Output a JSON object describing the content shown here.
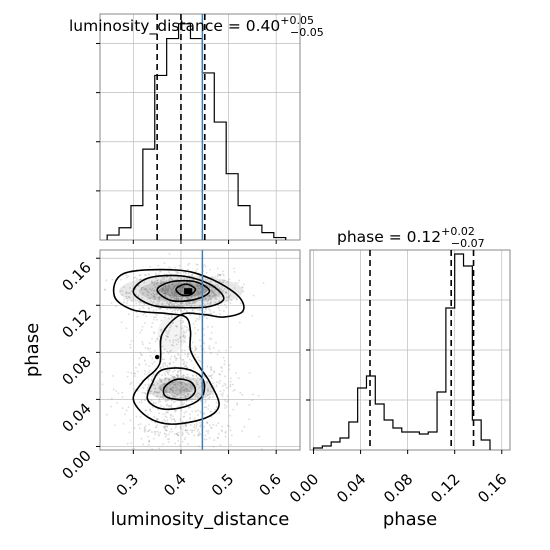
{
  "chart_data": {
    "type": "corner",
    "parameters": [
      "luminosity_distance",
      "phase"
    ],
    "truths": {
      "luminosity_distance": 0.445
    },
    "panels": [
      {
        "id": "hist-luminosity-distance",
        "type": "histogram",
        "title": {
          "prefix": "luminosity_distance = 0.40",
          "upper": "+0.05",
          "lower": "−0.05"
        },
        "xlim": [
          0.23,
          0.65
        ],
        "bin_edges": [
          0.245,
          0.27,
          0.295,
          0.32,
          0.345,
          0.37,
          0.395,
          0.42,
          0.445,
          0.47,
          0.495,
          0.52,
          0.545,
          0.57,
          0.595,
          0.62
        ],
        "counts": [
          2,
          5,
          14,
          37,
          67,
          82,
          88,
          82,
          68,
          48,
          27,
          14,
          6,
          3,
          1
        ],
        "quantiles": [
          0.35,
          0.4,
          0.45
        ],
        "ylim": [
          0,
          92
        ],
        "xticks": [
          0.3,
          0.4,
          0.5,
          0.6
        ]
      },
      {
        "id": "hist-phase",
        "type": "histogram",
        "title": {
          "prefix": "phase = 0.12",
          "upper": "+0.02",
          "lower": "−0.07"
        },
        "xlim": [
          -0.003,
          0.167
        ],
        "bin_edges": [
          0.0,
          0.0075,
          0.015,
          0.0225,
          0.03,
          0.0375,
          0.045,
          0.0525,
          0.06,
          0.0675,
          0.075,
          0.0825,
          0.09,
          0.0975,
          0.105,
          0.1125,
          0.12,
          0.1275,
          0.135,
          0.1425,
          0.15
        ],
        "counts": [
          1,
          2,
          4,
          6,
          14,
          31,
          37,
          23,
          15,
          11,
          9,
          9,
          8,
          9,
          29,
          71,
          98,
          92,
          15,
          5
        ],
        "quantiles": [
          0.048,
          0.117,
          0.136
        ],
        "ylim": [
          0,
          100
        ],
        "xticks": [
          "0.00",
          "0.04",
          "0.08",
          "0.12",
          "0.16"
        ]
      },
      {
        "id": "joint-luminosity-distance-phase",
        "type": "contour",
        "xlim": [
          0.23,
          0.65
        ],
        "ylim": [
          -0.003,
          0.167
        ],
        "xticks": [
          "0.3",
          "0.4",
          "0.5",
          "0.6"
        ],
        "yticks": [
          "0.00",
          "0.04",
          "0.08",
          "0.12",
          "0.16"
        ],
        "modes": [
          {
            "x": 0.41,
            "y": 0.131
          },
          {
            "x": 0.4,
            "y": 0.05
          }
        ],
        "contours": [
          [
            [
              0.26,
              0.128
            ],
            [
              0.28,
              0.147
            ],
            [
              0.39,
              0.15
            ],
            [
              0.46,
              0.143
            ],
            [
              0.52,
              0.128
            ],
            [
              0.53,
              0.115
            ],
            [
              0.49,
              0.11
            ],
            [
              0.45,
              0.112
            ],
            [
              0.4,
              0.112
            ],
            [
              0.36,
              0.095
            ],
            [
              0.355,
              0.07
            ],
            [
              0.32,
              0.055
            ],
            [
              0.3,
              0.04
            ],
            [
              0.33,
              0.025
            ],
            [
              0.38,
              0.019
            ],
            [
              0.45,
              0.024
            ],
            [
              0.48,
              0.035
            ],
            [
              0.46,
              0.055
            ],
            [
              0.44,
              0.067
            ],
            [
              0.42,
              0.082
            ],
            [
              0.42,
              0.098
            ],
            [
              0.41,
              0.11
            ],
            [
              0.37,
              0.113
            ],
            [
              0.3,
              0.116
            ]
          ],
          [
            [
              0.3,
              0.131
            ],
            [
              0.33,
              0.143
            ],
            [
              0.4,
              0.145
            ],
            [
              0.46,
              0.138
            ],
            [
              0.49,
              0.126
            ],
            [
              0.46,
              0.119
            ],
            [
              0.4,
              0.118
            ],
            [
              0.34,
              0.12
            ]
          ],
          [
            [
              0.34,
              0.054
            ],
            [
              0.36,
              0.065
            ],
            [
              0.41,
              0.066
            ],
            [
              0.445,
              0.058
            ],
            [
              0.445,
              0.043
            ],
            [
              0.41,
              0.034
            ],
            [
              0.36,
              0.032
            ],
            [
              0.33,
              0.04
            ]
          ],
          [
            [
              0.35,
              0.133
            ],
            [
              0.38,
              0.14
            ],
            [
              0.43,
              0.14
            ],
            [
              0.46,
              0.132
            ],
            [
              0.43,
              0.125
            ],
            [
              0.38,
              0.124
            ]
          ],
          [
            [
              0.365,
              0.05
            ],
            [
              0.39,
              0.057
            ],
            [
              0.42,
              0.055
            ],
            [
              0.43,
              0.047
            ],
            [
              0.41,
              0.04
            ],
            [
              0.37,
              0.042
            ]
          ],
          [
            [
              0.39,
              0.134
            ],
            [
              0.41,
              0.138
            ],
            [
              0.43,
              0.134
            ],
            [
              0.42,
              0.129
            ],
            [
              0.4,
              0.129
            ]
          ]
        ]
      }
    ],
    "xlabels": [
      "luminosity_distance",
      "phase"
    ],
    "ylabel": "phase"
  }
}
